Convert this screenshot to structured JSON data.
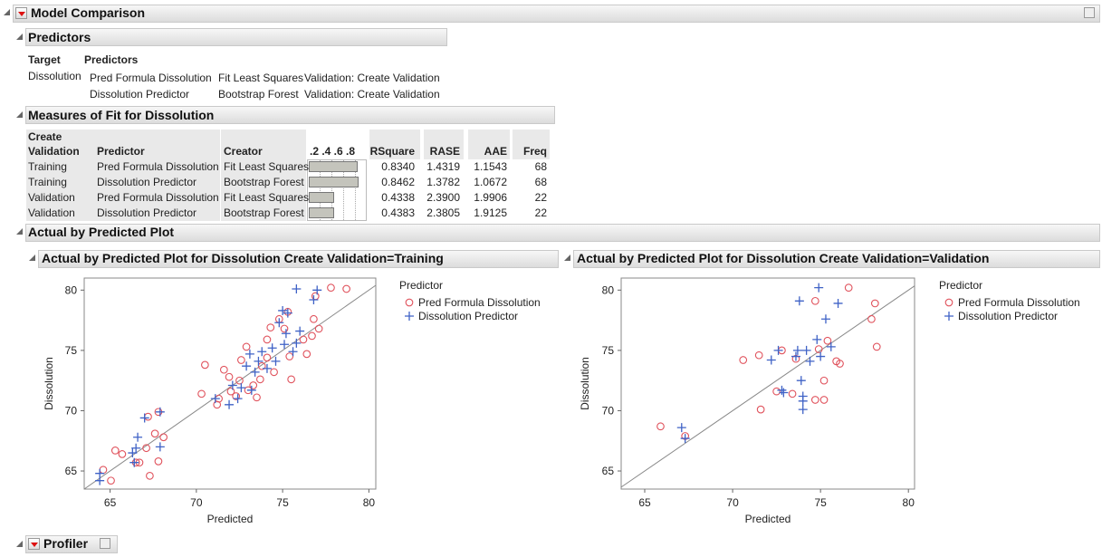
{
  "header": {
    "title": "Model Comparison"
  },
  "predictors": {
    "title": "Predictors",
    "columns": [
      "Target",
      "Predictors"
    ],
    "target": "Dissolution",
    "rows": [
      [
        "Pred Formula Dissolution",
        "Fit Least Squares",
        "Validation: Create Validation"
      ],
      [
        "Dissolution Predictor",
        "Bootstrap Forest",
        "Validation: Create Validation"
      ]
    ]
  },
  "measures": {
    "title": "Measures of Fit for Dissolution",
    "columns": [
      "Create Validation",
      "Predictor",
      "Creator",
      ".2 .4 .6 .8",
      "RSquare",
      "RASE",
      "AAE",
      "Freq"
    ],
    "rows": [
      [
        "Training",
        "Pred Formula Dissolution",
        "Fit Least Squares",
        "0.8340",
        "1.4319",
        "1.1543",
        "68"
      ],
      [
        "Training",
        "Dissolution Predictor",
        "Bootstrap Forest",
        "0.8462",
        "1.3782",
        "1.0672",
        "68"
      ],
      [
        "Validation",
        "Pred Formula Dissolution",
        "Fit Least Squares",
        "0.4338",
        "2.3900",
        "1.9906",
        "22"
      ],
      [
        "Validation",
        "Dissolution Predictor",
        "Bootstrap Forest",
        "0.4383",
        "2.3805",
        "1.9125",
        "22"
      ]
    ]
  },
  "plot_section": {
    "title": "Actual by Predicted Plot"
  },
  "chart_data": [
    {
      "type": "scatter",
      "title": "Actual by Predicted Plot for Dissolution Create Validation=Training",
      "x_label": "Predicted",
      "y_label": "Dissolution",
      "legend_title": "Predictor",
      "diagonal": true,
      "xlim": [
        63.5,
        80.4
      ],
      "ylim": [
        63.5,
        81
      ],
      "xticks": [
        65,
        70,
        75,
        80
      ],
      "yticks": [
        65,
        70,
        75,
        80
      ],
      "series": [
        {
          "name": "Pred Formula Dissolution",
          "color": "#e0525c",
          "marker": "circle",
          "x": [
            64.6,
            65.05,
            65.3,
            65.7,
            66.5,
            66.7,
            67.1,
            67.3,
            67.6,
            67.8,
            68.1,
            67.2,
            67.8,
            70.3,
            70.5,
            71.2,
            71.3,
            71.6,
            71.9,
            72.0,
            72.3,
            72.5,
            72.6,
            72.9,
            73.0,
            73.3,
            73.5,
            73.7,
            73.8,
            74.1,
            74.1,
            74.3,
            74.5,
            74.8,
            75.1,
            75.3,
            75.4,
            75.5,
            76.2,
            76.4,
            76.7,
            76.8,
            76.9,
            77.1,
            77.8,
            78.7
          ],
          "values": [
            65.1,
            64.2,
            66.7,
            66.4,
            65.7,
            65.7,
            66.9,
            64.6,
            68.1,
            65.8,
            67.8,
            69.5,
            69.9,
            71.4,
            73.8,
            70.5,
            71.0,
            73.4,
            72.8,
            71.6,
            71.2,
            72.5,
            74.2,
            75.3,
            71.7,
            72.1,
            71.1,
            72.6,
            73.7,
            74.4,
            75.9,
            76.9,
            73.2,
            77.6,
            76.8,
            78.2,
            74.5,
            72.6,
            75.9,
            74.7,
            76.2,
            77.6,
            79.5,
            76.8,
            80.2,
            80.1
          ]
        },
        {
          "name": "Dissolution Predictor",
          "color": "#3f62c6",
          "marker": "plus",
          "x": [
            64.4,
            64.4,
            66.3,
            66.4,
            66.5,
            66.6,
            67.0,
            67.9,
            67.9,
            71.1,
            71.9,
            72.1,
            72.4,
            72.6,
            72.9,
            73.1,
            73.2,
            73.4,
            73.6,
            73.8,
            74.1,
            74.4,
            74.6,
            74.8,
            75.1,
            75.2,
            75.3,
            75.6,
            75.8,
            76.0,
            75.8,
            76.8,
            77.0,
            75.0
          ],
          "values": [
            64.8,
            64.2,
            66.5,
            65.7,
            66.9,
            67.8,
            69.4,
            67.0,
            69.9,
            71.0,
            70.5,
            72.1,
            71.0,
            71.9,
            73.7,
            74.7,
            71.7,
            73.2,
            74.1,
            74.9,
            73.5,
            75.2,
            74.1,
            77.3,
            75.5,
            76.4,
            78.1,
            74.9,
            75.6,
            76.6,
            80.1,
            79.2,
            80.0,
            78.3
          ]
        }
      ]
    },
    {
      "type": "scatter",
      "title": "Actual by Predicted Plot for Dissolution Create Validation=Validation",
      "x_label": "Predicted",
      "y_label": "Dissolution",
      "legend_title": "Predictor",
      "diagonal": true,
      "xlim": [
        63.66,
        80.35
      ],
      "ylim": [
        63.5,
        81
      ],
      "xticks": [
        65,
        70,
        75,
        80
      ],
      "yticks": [
        65,
        70,
        75,
        80
      ],
      "series": [
        {
          "name": "Pred Formula Dissolution",
          "color": "#e0525c",
          "marker": "circle",
          "x": [
            65.9,
            67.3,
            70.6,
            71.5,
            71.6,
            72.5,
            72.8,
            73.4,
            73.6,
            74.7,
            74.7,
            74.9,
            75.2,
            75.2,
            75.4,
            75.9,
            76.1,
            76.6,
            77.9,
            78.1,
            78.2
          ],
          "values": [
            68.7,
            67.9,
            74.2,
            74.6,
            70.1,
            71.6,
            75.0,
            71.4,
            74.3,
            70.9,
            79.1,
            75.1,
            72.5,
            70.9,
            75.8,
            74.1,
            73.9,
            80.2,
            77.6,
            78.9,
            75.3
          ]
        },
        {
          "name": "Dissolution Predictor",
          "color": "#3f62c6",
          "marker": "plus",
          "x": [
            67.1,
            67.3,
            72.2,
            72.6,
            72.8,
            72.9,
            73.6,
            73.7,
            73.8,
            73.9,
            74.0,
            74.0,
            74.0,
            74.2,
            74.4,
            74.8,
            74.9,
            75.0,
            75.3,
            75.6,
            76.0
          ],
          "values": [
            68.6,
            67.7,
            74.2,
            75.0,
            71.7,
            71.5,
            74.5,
            75.0,
            79.1,
            72.5,
            71.2,
            70.1,
            70.8,
            75.0,
            74.1,
            75.9,
            80.2,
            74.5,
            77.6,
            75.3,
            78.9
          ]
        }
      ]
    }
  ],
  "profiler": {
    "title": "Profiler"
  }
}
